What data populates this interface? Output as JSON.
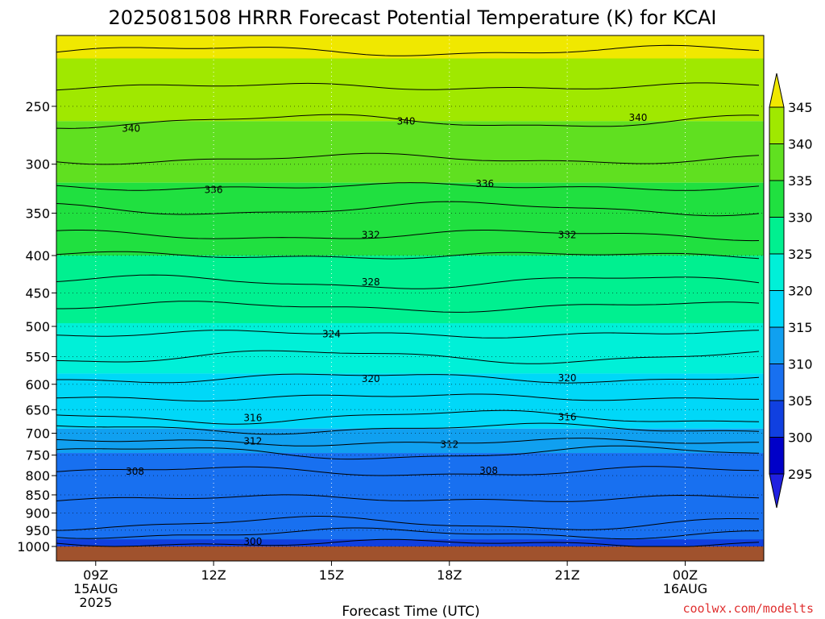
{
  "chart_data": {
    "type": "heatmap",
    "subtype": "filled-contour time-height cross-section",
    "title": "2025081508 HRRR Forecast Potential Temperature (K) for KCAI",
    "xlabel": "Forecast Time (UTC)",
    "ylabel": "",
    "y_scale": "log (pressure, hPa, inverted)",
    "ylim": [
      1000,
      200
    ],
    "grid": "dotted",
    "x_ticks": [
      {
        "label": "09Z",
        "date": "15AUG",
        "year": "2025",
        "hour": 9
      },
      {
        "label": "12Z",
        "hour": 12
      },
      {
        "label": "15Z",
        "hour": 15
      },
      {
        "label": "18Z",
        "hour": 18
      },
      {
        "label": "21Z",
        "hour": 21
      },
      {
        "label": "00Z",
        "date": "16AUG",
        "hour": 24
      }
    ],
    "xlim": [
      8,
      26
    ],
    "y_ticks": [
      250,
      300,
      350,
      400,
      450,
      500,
      550,
      600,
      650,
      700,
      750,
      800,
      850,
      900,
      950,
      1000
    ],
    "colorbar": {
      "levels": [
        295,
        300,
        305,
        310,
        315,
        320,
        325,
        330,
        335,
        340,
        345
      ],
      "labels": [
        "295",
        "300",
        "305",
        "310",
        "315",
        "320",
        "325",
        "330",
        "335",
        "340",
        "345"
      ],
      "colors": [
        "#2020e0",
        "#0000c8",
        "#1040e0",
        "#1870f0",
        "#10a0f0",
        "#00d8f8",
        "#00f0d8",
        "#00f090",
        "#20e040",
        "#60e020",
        "#a0e800",
        "#c8f000"
      ],
      "over_color": "#f0e800",
      "under_color": "#2020e0"
    },
    "contour_interval": 2,
    "contour_labels": [
      {
        "value": "340",
        "hour": 9.9,
        "p": 268
      },
      {
        "value": "340",
        "hour": 16.9,
        "p": 262
      },
      {
        "value": "340",
        "hour": 22.8,
        "p": 259
      },
      {
        "value": "336",
        "hour": 12.0,
        "p": 325
      },
      {
        "value": "336",
        "hour": 18.9,
        "p": 319
      },
      {
        "value": "332",
        "hour": 16.0,
        "p": 375
      },
      {
        "value": "332",
        "hour": 21.0,
        "p": 375
      },
      {
        "value": "328",
        "hour": 16.0,
        "p": 435
      },
      {
        "value": "324",
        "hour": 15.0,
        "p": 512
      },
      {
        "value": "320",
        "hour": 16.0,
        "p": 590
      },
      {
        "value": "320",
        "hour": 21.0,
        "p": 588
      },
      {
        "value": "316",
        "hour": 13.0,
        "p": 667
      },
      {
        "value": "316",
        "hour": 21.0,
        "p": 665
      },
      {
        "value": "312",
        "hour": 13.0,
        "p": 718
      },
      {
        "value": "312",
        "hour": 18.0,
        "p": 725
      },
      {
        "value": "308",
        "hour": 10.0,
        "p": 790
      },
      {
        "value": "308",
        "hour": 19.0,
        "p": 788
      },
      {
        "value": "300",
        "hour": 13.0,
        "p": 985
      }
    ],
    "bands": [
      {
        "theta": 345,
        "p_top": 200,
        "p_bot": 215
      },
      {
        "theta": 340,
        "p_top": 215,
        "p_bot": 262
      },
      {
        "theta": 335,
        "p_top": 262,
        "p_bot": 318
      },
      {
        "theta": 330,
        "p_top": 318,
        "p_bot": 400
      },
      {
        "theta": 325,
        "p_top": 400,
        "p_bot": 495
      },
      {
        "theta": 320,
        "p_top": 495,
        "p_bot": 580
      },
      {
        "theta": 315,
        "p_top": 580,
        "p_bot": 690
      },
      {
        "theta": 310,
        "p_top": 690,
        "p_bot": 745
      },
      {
        "theta": 305,
        "p_top": 745,
        "p_bot": 1000
      },
      {
        "theta": 300,
        "p_top": 978,
        "p_bot": 1000
      }
    ],
    "ground_color": "#a0522d"
  },
  "credit": {
    "text": "coolwx.com/modelts",
    "color": "#e03030"
  }
}
